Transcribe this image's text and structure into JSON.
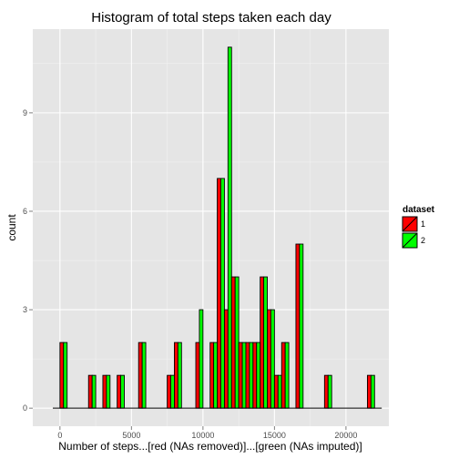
{
  "chart_data": {
    "type": "bar",
    "title": "Histogram of total steps taken each day",
    "xlabel": "Number of steps...[red (NAs removed)]...[green (NAs imputed)]",
    "ylabel": "count",
    "xlim": [
      -1900,
      23000
    ],
    "ylim": [
      -0.55,
      11.55
    ],
    "x_ticks": [
      0,
      5000,
      10000,
      15000,
      20000
    ],
    "x_tick_labels": [
      "0",
      "5000",
      "10000",
      "15000",
      "20000"
    ],
    "y_ticks": [
      0,
      3,
      6,
      9
    ],
    "y_tick_labels": [
      "0",
      "3",
      "6",
      "9"
    ],
    "grid": true,
    "bin_width": 500,
    "bin_start": -500,
    "legend": {
      "title": "dataset",
      "position": "right",
      "entries": [
        {
          "label": "1",
          "color": "#ff0000"
        },
        {
          "label": "2",
          "color": "#00ff00"
        }
      ]
    },
    "series": [
      {
        "name": "1",
        "color": "#ff0000",
        "values": [
          0,
          2,
          0,
          0,
          0,
          1,
          0,
          1,
          0,
          1,
          0,
          0,
          2,
          0,
          0,
          0,
          1,
          2,
          0,
          0,
          2,
          0,
          2,
          7,
          3,
          4,
          2,
          2,
          2,
          4,
          3,
          1,
          2,
          0,
          5,
          0,
          0,
          0,
          1,
          0,
          0,
          0,
          0,
          0,
          1,
          0
        ]
      },
      {
        "name": "2",
        "color": "#00ff00",
        "values": [
          0,
          2,
          0,
          0,
          0,
          1,
          0,
          1,
          0,
          1,
          0,
          0,
          2,
          0,
          0,
          0,
          1,
          2,
          0,
          0,
          3,
          0,
          2,
          7,
          11,
          4,
          2,
          2,
          2,
          4,
          3,
          1,
          2,
          0,
          5,
          0,
          0,
          0,
          1,
          0,
          0,
          0,
          0,
          0,
          1,
          0
        ]
      }
    ]
  }
}
